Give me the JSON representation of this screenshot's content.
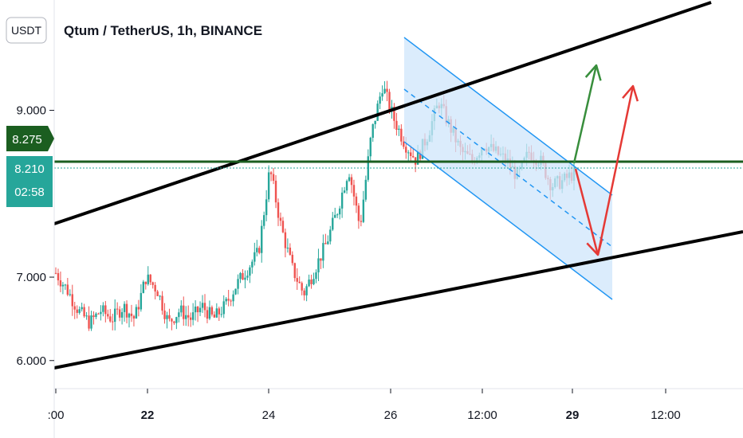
{
  "chart_data": {
    "type": "candlestick",
    "title": "Qtum / TetherUS, 1h, BINANCE",
    "currency": "USDT",
    "y_ticks": [
      "9.000",
      "7.000",
      "6.000"
    ],
    "y_range": [
      5.95,
      9.75
    ],
    "x_ticks": [
      ":00",
      "22",
      "24",
      "26",
      "12:00",
      "29",
      "12:00"
    ],
    "bold_x_ticks": [
      "22",
      "29"
    ],
    "price_tags": {
      "horizontal_level": "8.275",
      "last_price": "8.210",
      "countdown": "02:58"
    },
    "price_path": [
      7.05,
      6.85,
      6.6,
      6.45,
      6.6,
      6.5,
      6.65,
      6.5,
      7.0,
      6.85,
      6.45,
      6.6,
      6.5,
      6.65,
      6.5,
      6.65,
      6.9,
      7.1,
      7.3,
      8.3,
      7.6,
      7.1,
      6.8,
      7.1,
      7.4,
      7.8,
      8.3,
      7.6,
      8.7,
      9.3,
      8.9,
      8.6,
      8.4,
      8.7,
      9.1,
      8.8,
      8.5,
      8.4,
      8.6,
      8.5,
      8.4,
      8.2,
      8.5,
      8.4,
      8.1,
      8.15,
      8.25
    ]
  },
  "colors": {
    "bull": "#26a69a",
    "bear": "#ef5350",
    "trendline": "#000000",
    "horizontal_level": "#1b5e20",
    "last_price": "#26a69a",
    "channel_fill": "#cfe5fb",
    "channel_line": "#2196f3",
    "arrow_green": "#388e3c",
    "arrow_red": "#e53935"
  }
}
